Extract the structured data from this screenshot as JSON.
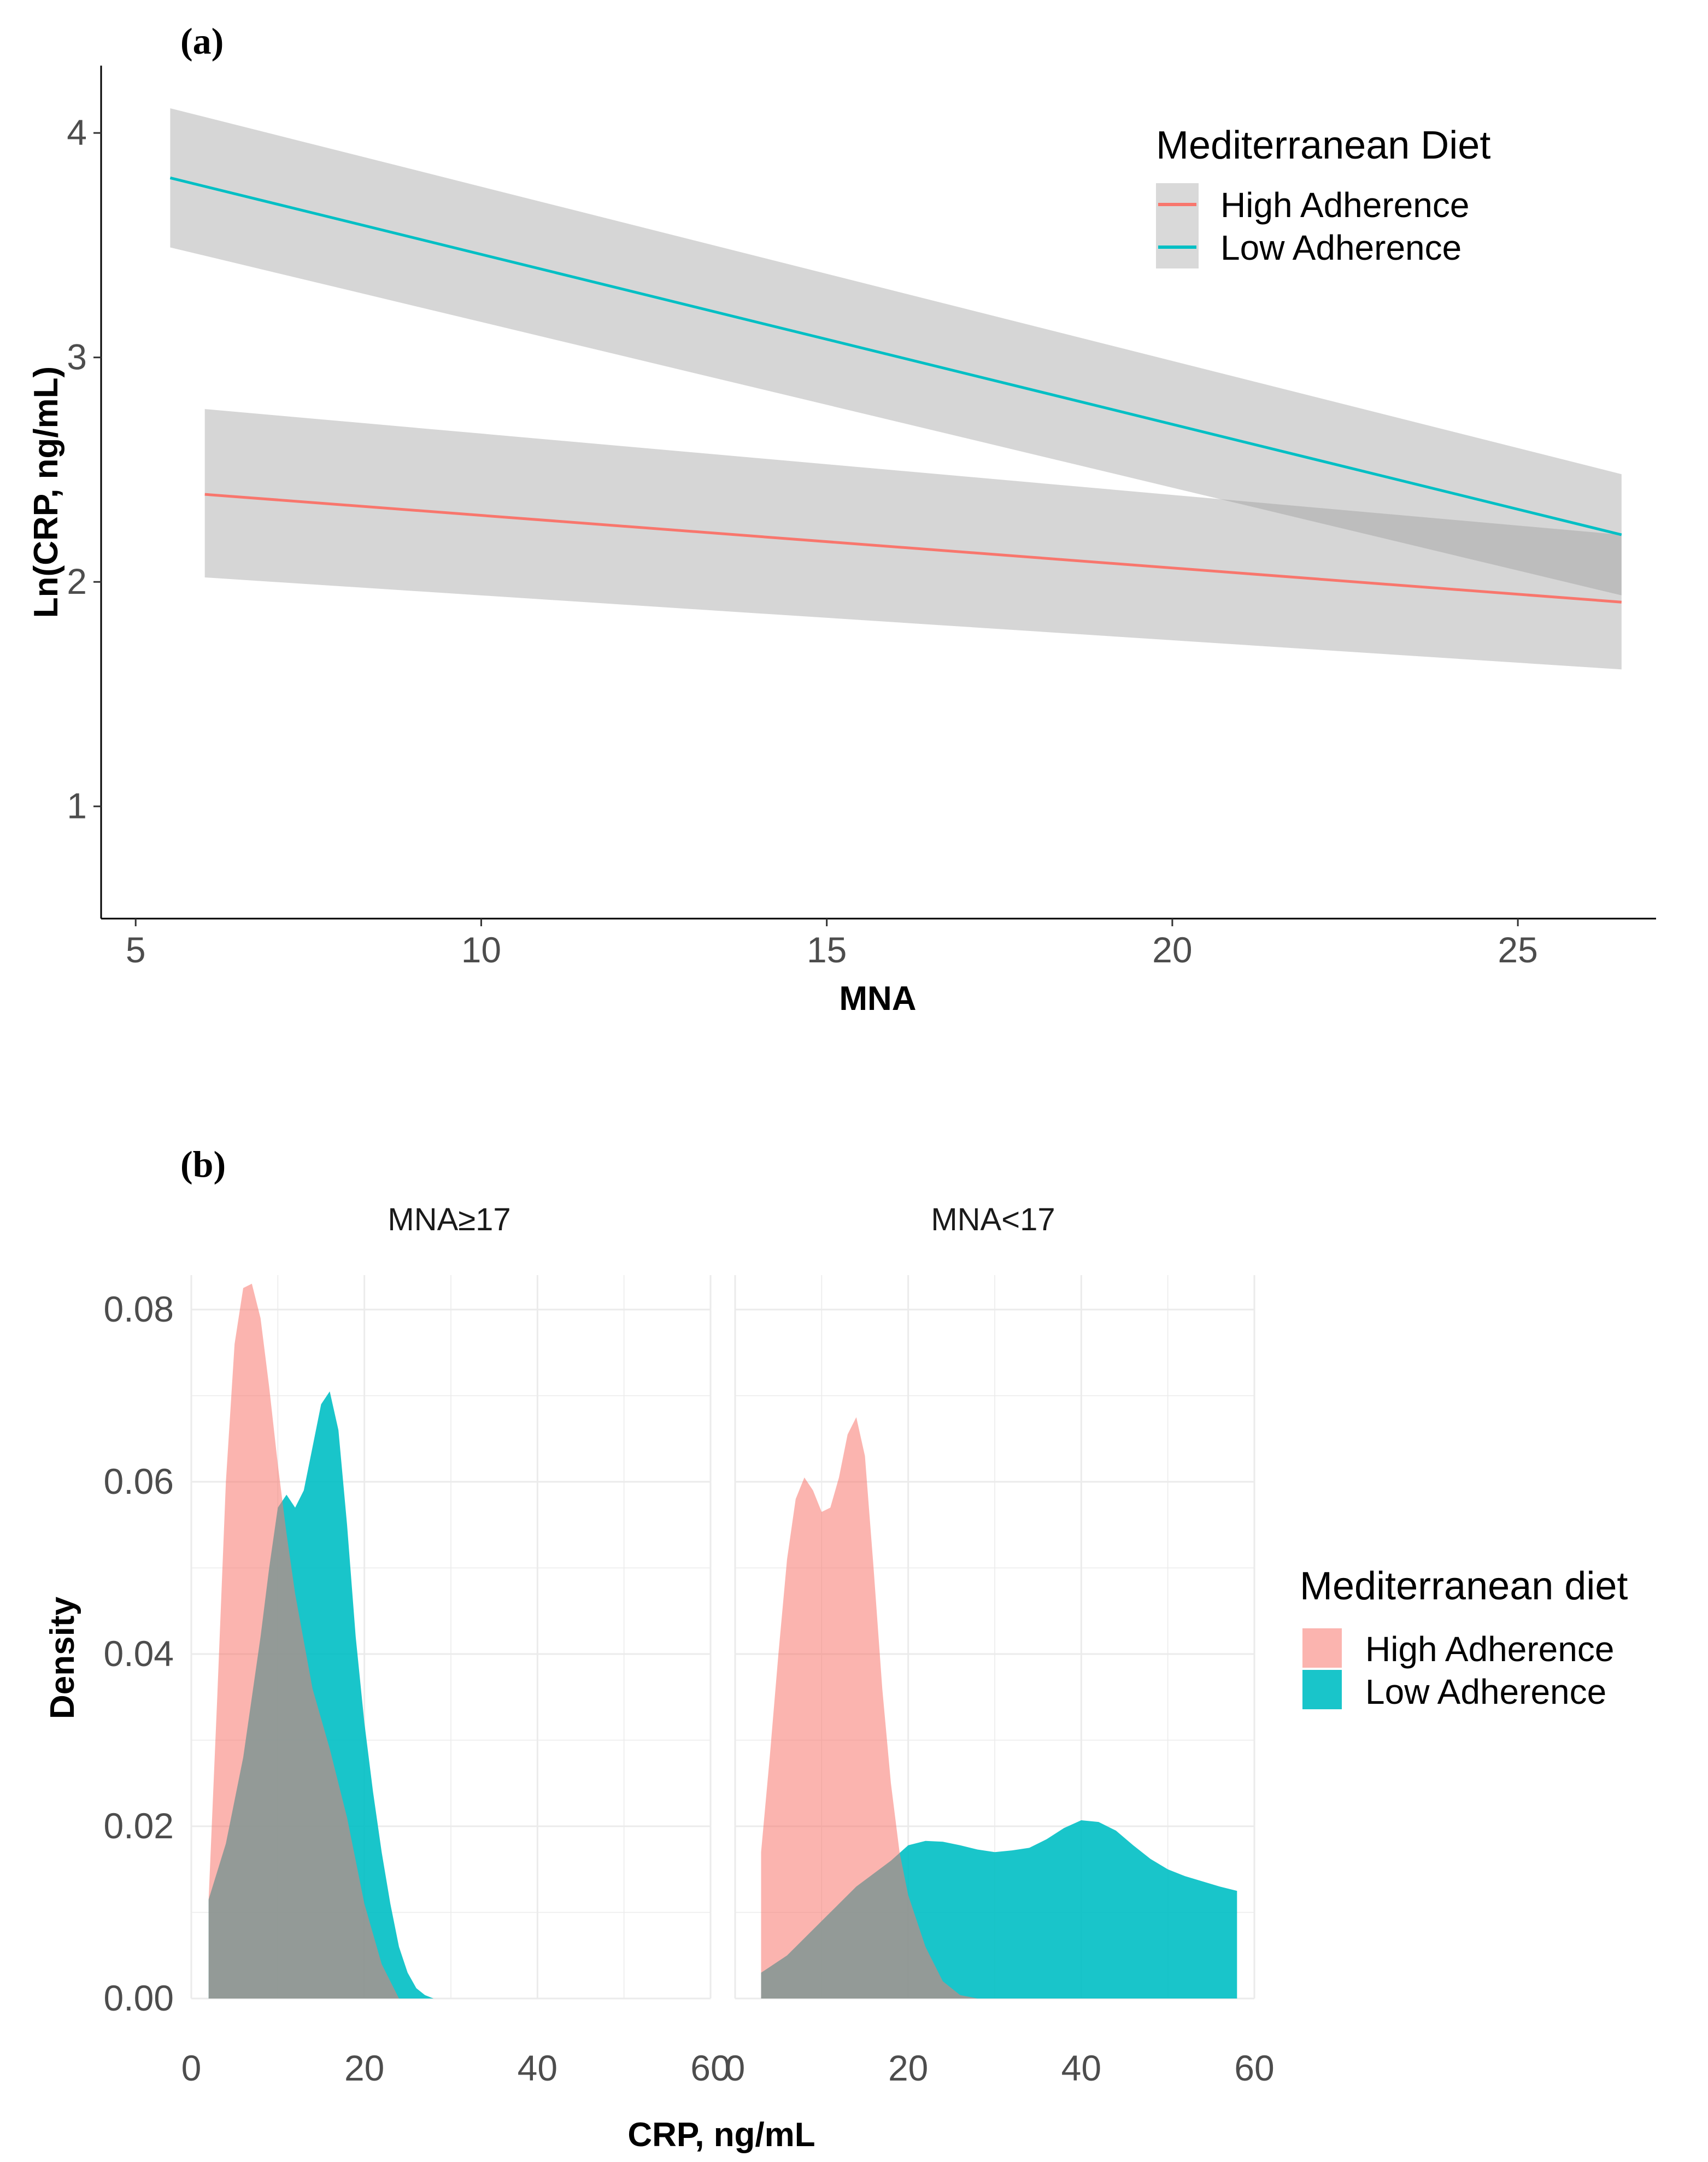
{
  "chart_data": [
    {
      "type": "line",
      "panel_label": "(a)",
      "xlabel": "MNA",
      "ylabel": "Ln(CRP, ng/mL)",
      "xlim": [
        4.5,
        27
      ],
      "ylim": [
        0.5,
        4.3
      ],
      "xticks": [
        5,
        10,
        15,
        20,
        25
      ],
      "yticks": [
        1,
        2,
        3,
        4
      ],
      "grid": false,
      "legend": {
        "title": "Mediterranean Diet",
        "position": "top-right",
        "entries": [
          "High Adherence",
          "Low Adherence"
        ]
      },
      "series": [
        {
          "name": "High Adherence",
          "color": "#F8766D",
          "x": [
            6,
            26.5
          ],
          "y": [
            2.39,
            1.91
          ],
          "ci_lower": [
            2.02,
            1.61
          ],
          "ci_upper": [
            2.77,
            2.21
          ]
        },
        {
          "name": "Low Adherence",
          "color": "#00BFC4",
          "x": [
            5.5,
            26.5
          ],
          "y": [
            3.8,
            2.21
          ],
          "ci_lower": [
            3.49,
            1.94
          ],
          "ci_upper": [
            4.11,
            2.48
          ]
        }
      ]
    },
    {
      "type": "area",
      "subtype": "density",
      "panel_label": "(b)",
      "xlabel": "CRP, ng/mL",
      "ylabel": "Density",
      "xlim": [
        0,
        60
      ],
      "ylim": [
        0,
        0.084
      ],
      "xticks": [
        0,
        20,
        40,
        60
      ],
      "xtick_labels": [
        "0",
        "20",
        "40",
        "60"
      ],
      "yticks": [
        0.0,
        0.02,
        0.04,
        0.06,
        0.08
      ],
      "ytick_labels": [
        "0.00",
        "0.02",
        "0.04",
        "0.06",
        "0.08"
      ],
      "grid": true,
      "legend": {
        "title": "Mediterranean diet",
        "position": "right",
        "entries": [
          "High Adherence",
          "Low Adherence"
        ]
      },
      "facets": [
        {
          "label": "MNA≥17",
          "series": [
            {
              "name": "High Adherence",
              "color": "#F8766D",
              "x": [
                2,
                3,
                4,
                5,
                6,
                7,
                8,
                9,
                10,
                11,
                12,
                14,
                16,
                18,
                20,
                22,
                24
              ],
              "y": [
                0.0115,
                0.035,
                0.06,
                0.076,
                0.0825,
                0.083,
                0.079,
                0.071,
                0.062,
                0.054,
                0.047,
                0.036,
                0.029,
                0.021,
                0.011,
                0.004,
                0.0
              ]
            },
            {
              "name": "Low Adherence",
              "color": "#00BFC4",
              "x": [
                2,
                4,
                6,
                8,
                9,
                10,
                11,
                12,
                13,
                14,
                15,
                16,
                17,
                18,
                19,
                20,
                21,
                22,
                23,
                24,
                25,
                26,
                27,
                28
              ],
              "y": [
                0.0115,
                0.018,
                0.028,
                0.042,
                0.05,
                0.057,
                0.0585,
                0.057,
                0.059,
                0.064,
                0.069,
                0.0705,
                0.066,
                0.055,
                0.042,
                0.032,
                0.024,
                0.017,
                0.011,
                0.006,
                0.003,
                0.0012,
                0.0004,
                0.0
              ]
            }
          ]
        },
        {
          "label": "MNA<17",
          "series": [
            {
              "name": "High Adherence",
              "color": "#F8766D",
              "x": [
                3,
                4,
                5,
                6,
                7,
                8,
                9,
                10,
                11,
                12,
                13,
                14,
                15,
                16,
                17,
                18,
                19,
                20,
                22,
                24,
                26,
                28
              ],
              "y": [
                0.017,
                0.028,
                0.04,
                0.051,
                0.058,
                0.0605,
                0.059,
                0.0565,
                0.057,
                0.0605,
                0.0655,
                0.0675,
                0.063,
                0.05,
                0.036,
                0.025,
                0.017,
                0.012,
                0.006,
                0.002,
                0.0004,
                0.0
              ]
            },
            {
              "name": "Low Adherence",
              "color": "#00BFC4",
              "x": [
                3,
                6,
                10,
                14,
                18,
                20,
                22,
                24,
                26,
                28,
                30,
                32,
                34,
                36,
                38,
                40,
                42,
                44,
                46,
                48,
                50,
                52,
                54,
                56,
                58
              ],
              "y": [
                0.003,
                0.005,
                0.009,
                0.013,
                0.016,
                0.0178,
                0.0183,
                0.0182,
                0.0178,
                0.0173,
                0.017,
                0.0172,
                0.0175,
                0.0185,
                0.0198,
                0.0207,
                0.0205,
                0.0195,
                0.0178,
                0.0162,
                0.015,
                0.0142,
                0.0136,
                0.013,
                0.0125
              ]
            }
          ]
        }
      ]
    }
  ]
}
